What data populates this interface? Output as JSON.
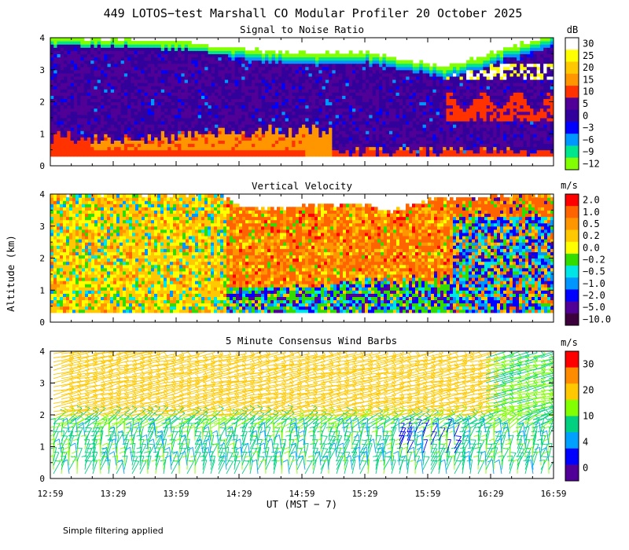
{
  "figure": {
    "title": "449 LOTOS−test Marshall CO Modular Profiler 20 October 2025",
    "ylabel": "Altitude (km)",
    "xlabel": "UT  (MST − 7)",
    "x_ticks": [
      "12:59",
      "13:29",
      "13:59",
      "14:29",
      "14:59",
      "15:29",
      "15:59",
      "16:29",
      "16:59"
    ],
    "y_ticks": [
      "0",
      "1",
      "2",
      "3",
      "4"
    ],
    "footnote": "Simple filtering applied"
  },
  "chart_data": [
    {
      "type": "heatmap",
      "title": "Signal to Noise Ratio",
      "x_range": [
        "12:59",
        "16:59"
      ],
      "ylim": [
        0,
        4
      ],
      "units": "dB",
      "colorbar_labels": [
        "30",
        "25",
        "20",
        "15",
        "10",
        "5",
        "0",
        "−3",
        "−6",
        "−9",
        "−12"
      ],
      "colorbar_colors": [
        "#ffffff",
        "#ffff00",
        "#ffc800",
        "#ff9600",
        "#ff3200",
        "#500096",
        "#32009b",
        "#0000ff",
        "#0096ff",
        "#00e68c",
        "#82ff00"
      ],
      "data_top_km": [
        3.95,
        3.85,
        3.6,
        3.45,
        3.5,
        3.15,
        3.05,
        3.45,
        3.85,
        4.0
      ],
      "data_top_times": [
        "12:59",
        "13:59",
        "14:29",
        "14:59",
        "15:29",
        "15:59",
        "16:09",
        "16:29",
        "16:49",
        "16:59"
      ]
    },
    {
      "type": "heatmap",
      "title": "Vertical Velocity",
      "x_range": [
        "12:59",
        "16:59"
      ],
      "ylim": [
        0,
        4
      ],
      "units": "m/s",
      "colorbar_labels": [
        "2.0",
        "1.0",
        "0.5",
        "0.2",
        "0.0",
        "−0.2",
        "−0.5",
        "−1.0",
        "−2.0",
        "−5.0",
        "−10.0"
      ],
      "colorbar_colors": [
        "#ff0000",
        "#ff6400",
        "#ff9600",
        "#ffc800",
        "#ffff00",
        "#32dc00",
        "#00e6e6",
        "#0096ff",
        "#0000ff",
        "#500096",
        "#3c003c"
      ],
      "data_top_km": [
        4.0,
        4.0,
        3.6,
        3.6,
        3.7,
        3.4,
        3.8,
        3.9,
        4.0
      ],
      "data_top_times": [
        "12:59",
        "14:19",
        "14:29",
        "14:59",
        "15:29",
        "15:39",
        "15:59",
        "16:29",
        "16:59"
      ]
    },
    {
      "type": "scatter",
      "title": "5 Minute Consensus Wind Barbs",
      "x_range": [
        "12:59",
        "16:59"
      ],
      "ylim": [
        0,
        4
      ],
      "units": "m/s",
      "colorbar_labels": [
        "30",
        "20",
        "10",
        "4",
        "0"
      ],
      "colorbar_colors": [
        "#ff0000",
        "#ff8c00",
        "#ffc800",
        "#82ff00",
        "#00d080",
        "#00a0ff",
        "#0000ff",
        "#500096"
      ]
    }
  ]
}
